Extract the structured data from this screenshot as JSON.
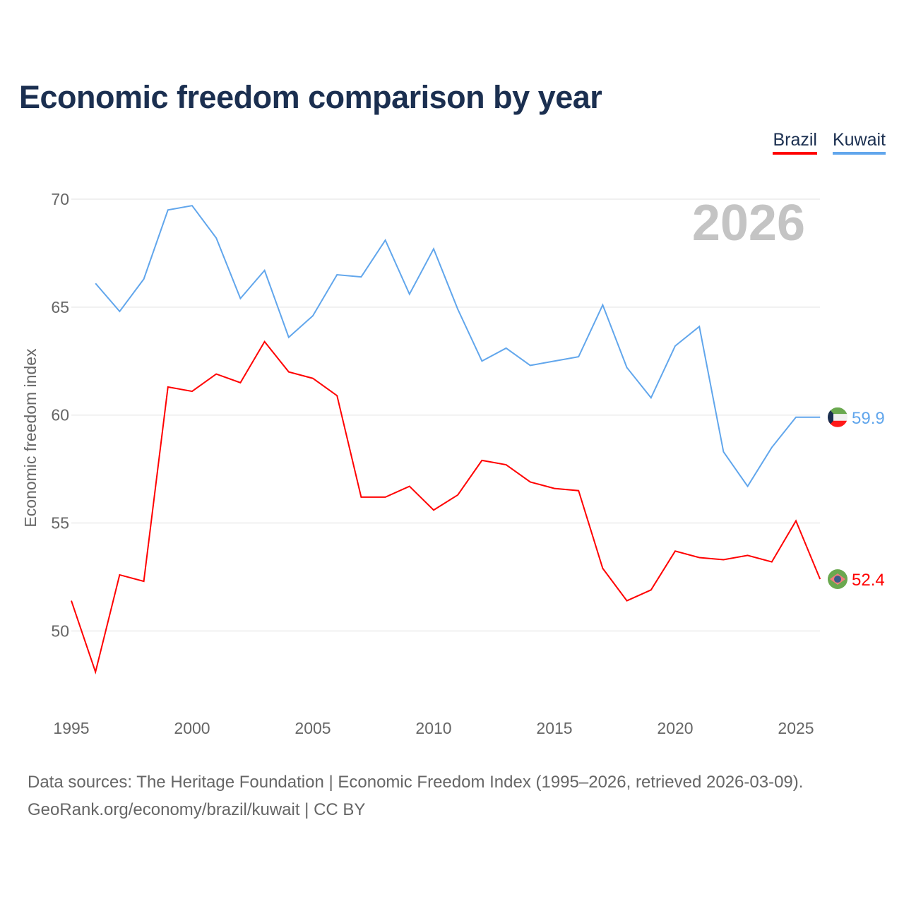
{
  "title": "Economic freedom comparison by year",
  "legend": [
    {
      "name": "Brazil",
      "color": "#ff0000"
    },
    {
      "name": "Kuwait",
      "color": "#61a6ec"
    }
  ],
  "source_line1": "Data sources: The Heritage Foundation | Economic Freedom Index (1995–2026, retrieved 2026-03-09).",
  "source_line2": "GeoRank.org/economy/brazil/kuwait | CC BY",
  "chart_data": {
    "type": "line",
    "title": "Economic freedom comparison by year",
    "ylabel": "Economic freedom index",
    "xlabel": "",
    "year_watermark": "2026",
    "ylim": [
      46,
      70.5
    ],
    "xlim": [
      1995,
      2026
    ],
    "yticks": [
      50,
      55,
      60,
      65,
      70
    ],
    "xticks": [
      1995,
      2000,
      2005,
      2010,
      2015,
      2020,
      2025
    ],
    "grid": true,
    "legend_position": "top-right",
    "series": [
      {
        "name": "Brazil",
        "color": "#ff0000",
        "end_label": "52.4",
        "flag": "brazil-flag-icon",
        "x": [
          1995,
          1996,
          1997,
          1998,
          1999,
          2000,
          2001,
          2002,
          2003,
          2004,
          2005,
          2006,
          2007,
          2008,
          2009,
          2010,
          2011,
          2012,
          2013,
          2014,
          2015,
          2016,
          2017,
          2018,
          2019,
          2020,
          2021,
          2022,
          2023,
          2024,
          2025,
          2026
        ],
        "values": [
          51.4,
          48.1,
          52.6,
          52.3,
          61.3,
          61.1,
          61.9,
          61.5,
          63.4,
          62.0,
          61.7,
          60.9,
          56.2,
          56.2,
          56.7,
          55.6,
          56.3,
          57.9,
          57.7,
          56.9,
          56.6,
          56.5,
          52.9,
          51.4,
          51.9,
          53.7,
          53.4,
          53.3,
          53.5,
          53.2,
          55.1,
          52.4
        ]
      },
      {
        "name": "Kuwait",
        "color": "#61a6ec",
        "end_label": "59.9",
        "flag": "kuwait-flag-icon",
        "x": [
          1996,
          1997,
          1998,
          1999,
          2000,
          2001,
          2002,
          2003,
          2004,
          2005,
          2006,
          2007,
          2008,
          2009,
          2010,
          2011,
          2012,
          2013,
          2014,
          2015,
          2016,
          2017,
          2018,
          2019,
          2020,
          2021,
          2022,
          2023,
          2024,
          2025,
          2026
        ],
        "values": [
          66.1,
          64.8,
          66.3,
          69.5,
          69.7,
          68.2,
          65.4,
          66.7,
          63.6,
          64.6,
          66.5,
          66.4,
          68.1,
          65.6,
          67.7,
          64.9,
          62.5,
          63.1,
          62.3,
          62.5,
          62.7,
          65.1,
          62.2,
          60.8,
          63.2,
          64.1,
          58.3,
          56.7,
          58.5,
          59.9,
          59.9
        ]
      }
    ]
  }
}
